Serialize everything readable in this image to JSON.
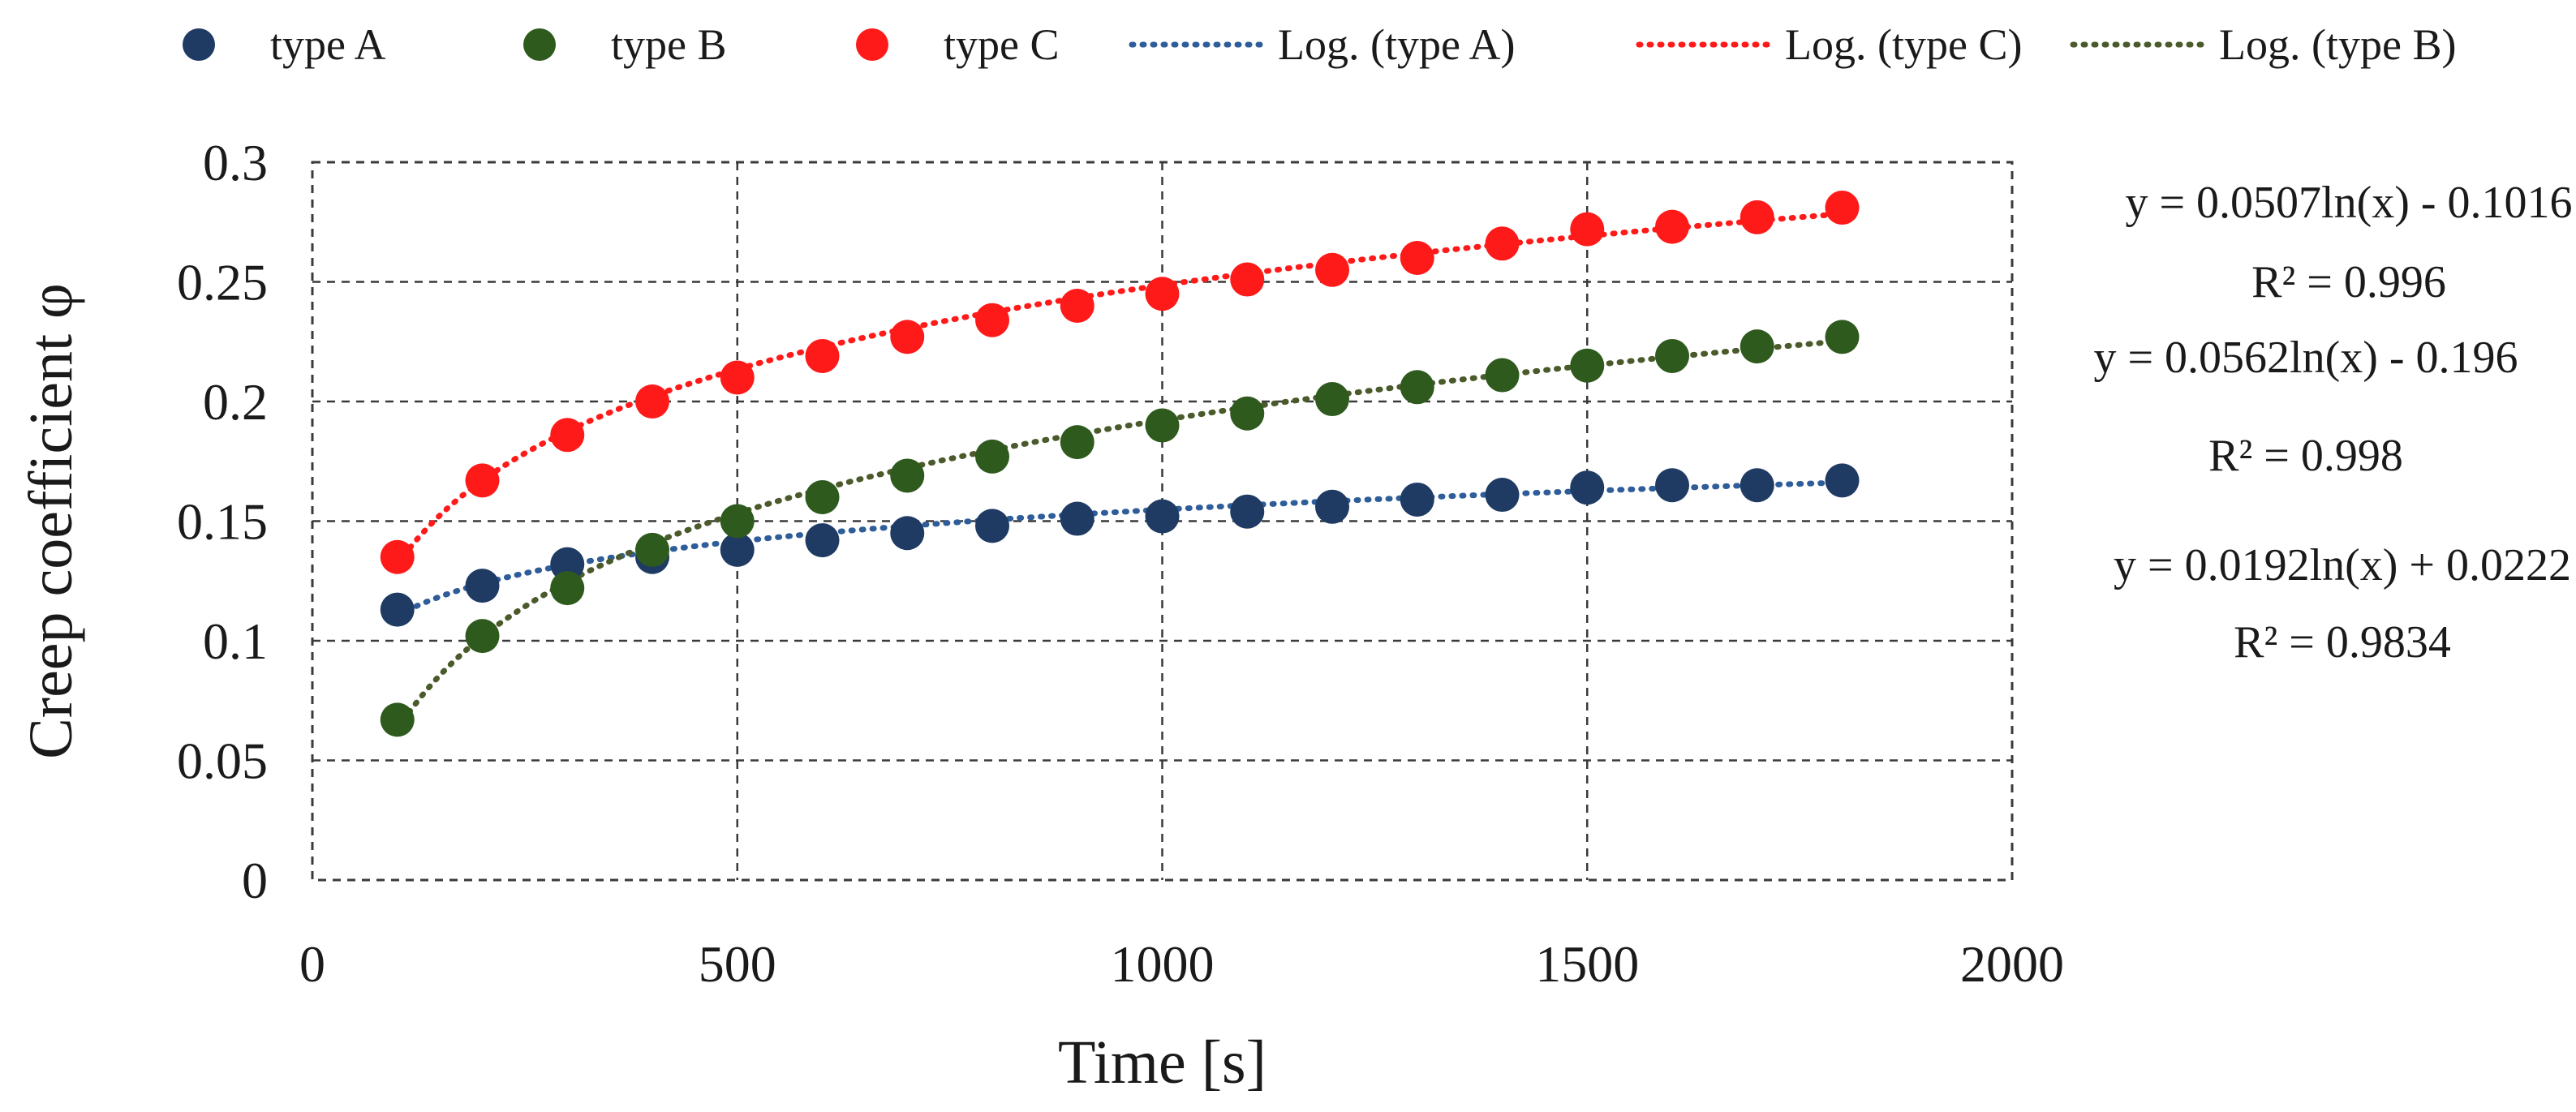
{
  "chart_data": {
    "type": "scatter",
    "xlabel": "Time [s]",
    "ylabel": "Creep coefficient φ",
    "xlim": [
      0,
      2000
    ],
    "ylim": [
      0,
      0.3
    ],
    "x_ticks": [
      "0",
      "500",
      "1000",
      "1500",
      "2000"
    ],
    "y_ticks": [
      "0",
      "0.05",
      "0.1",
      "0.15",
      "0.2",
      "0.25",
      "0.3"
    ],
    "grid": true,
    "legend_position": "top",
    "x": [
      100,
      200,
      300,
      400,
      500,
      600,
      700,
      800,
      900,
      1000,
      1100,
      1200,
      1300,
      1400,
      1500,
      1600,
      1700,
      1800
    ],
    "series": [
      {
        "name": "type A",
        "color": "#1f3b64",
        "values": [
          0.113,
          0.123,
          0.132,
          0.135,
          0.138,
          0.142,
          0.145,
          0.148,
          0.151,
          0.152,
          0.154,
          0.156,
          0.159,
          0.161,
          0.164,
          0.165,
          0.165,
          0.167
        ]
      },
      {
        "name": "type B",
        "color": "#2f5a1e",
        "values": [
          0.067,
          0.102,
          0.122,
          0.138,
          0.15,
          0.16,
          0.169,
          0.177,
          0.183,
          0.19,
          0.195,
          0.201,
          0.206,
          0.211,
          0.215,
          0.219,
          0.223,
          0.227
        ]
      },
      {
        "name": "type C",
        "color": "#ff1a1a",
        "values": [
          0.135,
          0.167,
          0.186,
          0.2,
          0.21,
          0.219,
          0.227,
          0.234,
          0.24,
          0.245,
          0.251,
          0.255,
          0.26,
          0.266,
          0.272,
          0.273,
          0.277,
          0.281
        ]
      }
    ],
    "trendlines": [
      {
        "name": "Log. (type A)",
        "series": "type A",
        "color": "#2e5d9a",
        "a": 0.0192,
        "b": 0.0222,
        "equation": "y = 0.0192ln(x) + 0.0222",
        "r2": "R² = 0.9834"
      },
      {
        "name": "Log. (type C)",
        "series": "type C",
        "color": "#ff1a1a",
        "a": 0.0507,
        "b": -0.1016,
        "equation": "y = 0.0507ln(x) - 0.1016",
        "r2": "R² = 0.996"
      },
      {
        "name": "Log. (type B)",
        "series": "type B",
        "color": "#4a5a2a",
        "a": 0.0562,
        "b": -0.196,
        "equation": "y = 0.0562ln(x) - 0.196",
        "r2": "R² = 0.998"
      }
    ],
    "trend_range": [
      100,
      1800
    ]
  }
}
